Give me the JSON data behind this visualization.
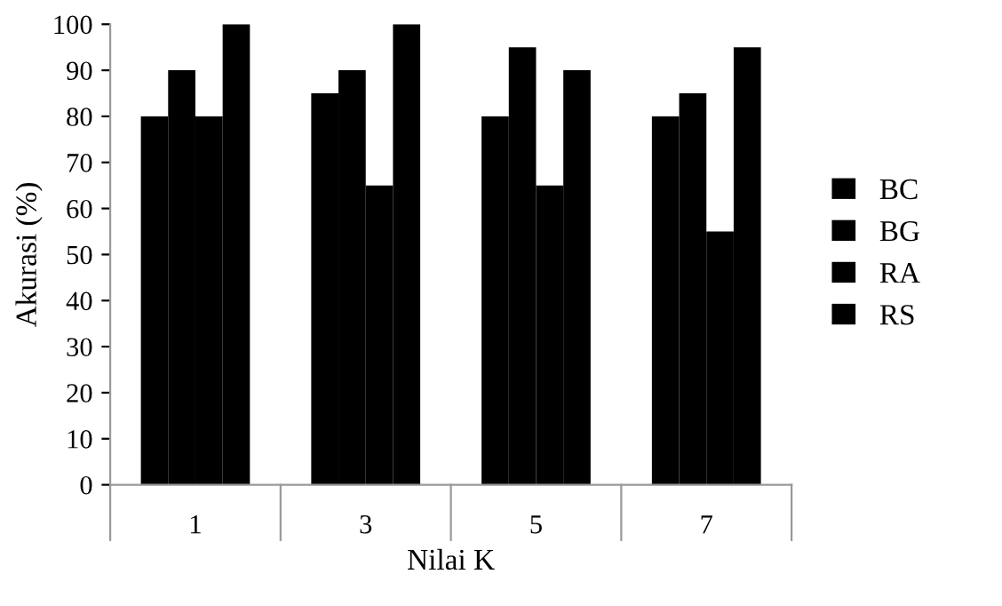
{
  "chart_data": {
    "type": "bar",
    "xlabel": "Nilai K",
    "ylabel": "Akurasi (%)",
    "categories": [
      "1",
      "3",
      "5",
      "7"
    ],
    "series": [
      {
        "name": "BC",
        "color": "#000000",
        "values": [
          80,
          85,
          80,
          80
        ]
      },
      {
        "name": "BG",
        "color": "#000000",
        "values": [
          90,
          90,
          95,
          85
        ]
      },
      {
        "name": "RA",
        "color": "#000000",
        "values": [
          80,
          65,
          65,
          55
        ]
      },
      {
        "name": "RS",
        "color": "#000000",
        "values": [
          100,
          100,
          90,
          95
        ]
      }
    ],
    "ylim": [
      0,
      100
    ],
    "yticks": [
      0,
      10,
      20,
      30,
      40,
      50,
      60,
      70,
      80,
      90,
      100
    ],
    "grid": false,
    "legend": "right"
  }
}
